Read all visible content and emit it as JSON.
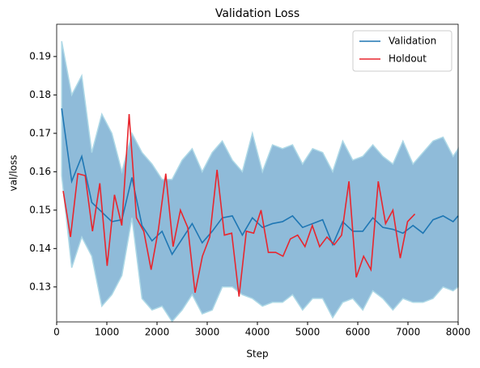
{
  "chart_data": {
    "type": "line",
    "title": "Validation Loss",
    "x_label": "Step",
    "y_label": "val/loss",
    "xlim": [
      0,
      8000
    ],
    "ylim": [
      0.1209,
      0.1984
    ],
    "xticks": [
      0,
      1000,
      2000,
      3000,
      4000,
      5000,
      6000,
      7000,
      8000
    ],
    "yticks": [
      0.13,
      0.14,
      0.15,
      0.16,
      0.17,
      0.18,
      0.19
    ],
    "legend": "upper right",
    "band": {
      "series": 0,
      "color": "#1f77b4",
      "edge_color": "#add8e6",
      "upper": [
        0.194,
        0.18,
        0.185,
        0.165,
        0.175,
        0.17,
        0.16,
        0.17,
        0.165,
        0.162,
        0.158,
        0.158,
        0.163,
        0.166,
        0.16,
        0.165,
        0.168,
        0.163,
        0.16,
        0.17,
        0.16,
        0.167,
        0.166,
        0.167,
        0.162,
        0.166,
        0.165,
        0.16,
        0.168,
        0.163,
        0.164,
        0.167,
        0.164,
        0.162,
        0.168,
        0.162,
        0.165,
        0.168,
        0.169,
        0.164,
        0.166
      ],
      "lower": [
        0.159,
        0.135,
        0.143,
        0.138,
        0.125,
        0.128,
        0.133,
        0.148,
        0.127,
        0.124,
        0.125,
        0.121,
        0.124,
        0.128,
        0.123,
        0.124,
        0.13,
        0.13,
        0.128,
        0.127,
        0.125,
        0.126,
        0.126,
        0.128,
        0.124,
        0.127,
        0.127,
        0.122,
        0.126,
        0.127,
        0.124,
        0.129,
        0.127,
        0.124,
        0.127,
        0.126,
        0.126,
        0.127,
        0.13,
        0.129,
        0.13
      ]
    },
    "series": [
      {
        "name": "Validation",
        "color": "#1f77b4",
        "x": [
          100,
          300,
          500,
          700,
          900,
          1100,
          1300,
          1500,
          1700,
          1900,
          2100,
          2300,
          2500,
          2700,
          2900,
          3100,
          3300,
          3500,
          3700,
          3900,
          4100,
          4300,
          4500,
          4700,
          4900,
          5100,
          5300,
          5500,
          5700,
          5900,
          6100,
          6300,
          6500,
          6700,
          6900,
          7100,
          7300,
          7500,
          7700,
          7900,
          8000
        ],
        "values": [
          0.1765,
          0.1575,
          0.164,
          0.152,
          0.1495,
          0.147,
          0.1475,
          0.1585,
          0.146,
          0.142,
          0.1445,
          0.1385,
          0.1425,
          0.1465,
          0.1415,
          0.1445,
          0.148,
          0.1485,
          0.1435,
          0.148,
          0.1455,
          0.1465,
          0.147,
          0.1485,
          0.1455,
          0.1465,
          0.1475,
          0.141,
          0.147,
          0.1445,
          0.1445,
          0.148,
          0.1455,
          0.145,
          0.144,
          0.146,
          0.144,
          0.1475,
          0.1485,
          0.147,
          0.1485
        ]
      },
      {
        "name": "Holdout",
        "color": "#e8262e",
        "x": [
          130,
          276,
          422,
          568,
          714,
          860,
          1006,
          1152,
          1298,
          1444,
          1590,
          1736,
          1882,
          2028,
          2174,
          2320,
          2466,
          2612,
          2758,
          2904,
          3050,
          3196,
          3342,
          3488,
          3634,
          3780,
          3926,
          4072,
          4218,
          4364,
          4510,
          4656,
          4802,
          4948,
          5094,
          5240,
          5386,
          5532,
          5678,
          5824,
          5970,
          6116,
          6262,
          6408,
          6554,
          6700,
          6846,
          6992,
          7138
        ],
        "values": [
          0.155,
          0.143,
          0.1595,
          0.159,
          0.1445,
          0.157,
          0.1355,
          0.154,
          0.146,
          0.175,
          0.148,
          0.1445,
          0.1345,
          0.145,
          0.1595,
          0.1405,
          0.15,
          0.1455,
          0.1285,
          0.138,
          0.143,
          0.1605,
          0.1435,
          0.144,
          0.1275,
          0.1445,
          0.144,
          0.15,
          0.139,
          0.139,
          0.138,
          0.1425,
          0.1435,
          0.1405,
          0.146,
          0.1405,
          0.143,
          0.141,
          0.1435,
          0.1575,
          0.1325,
          0.138,
          0.1345,
          0.1575,
          0.1465,
          0.15,
          0.1375,
          0.147,
          0.149
        ]
      }
    ]
  }
}
